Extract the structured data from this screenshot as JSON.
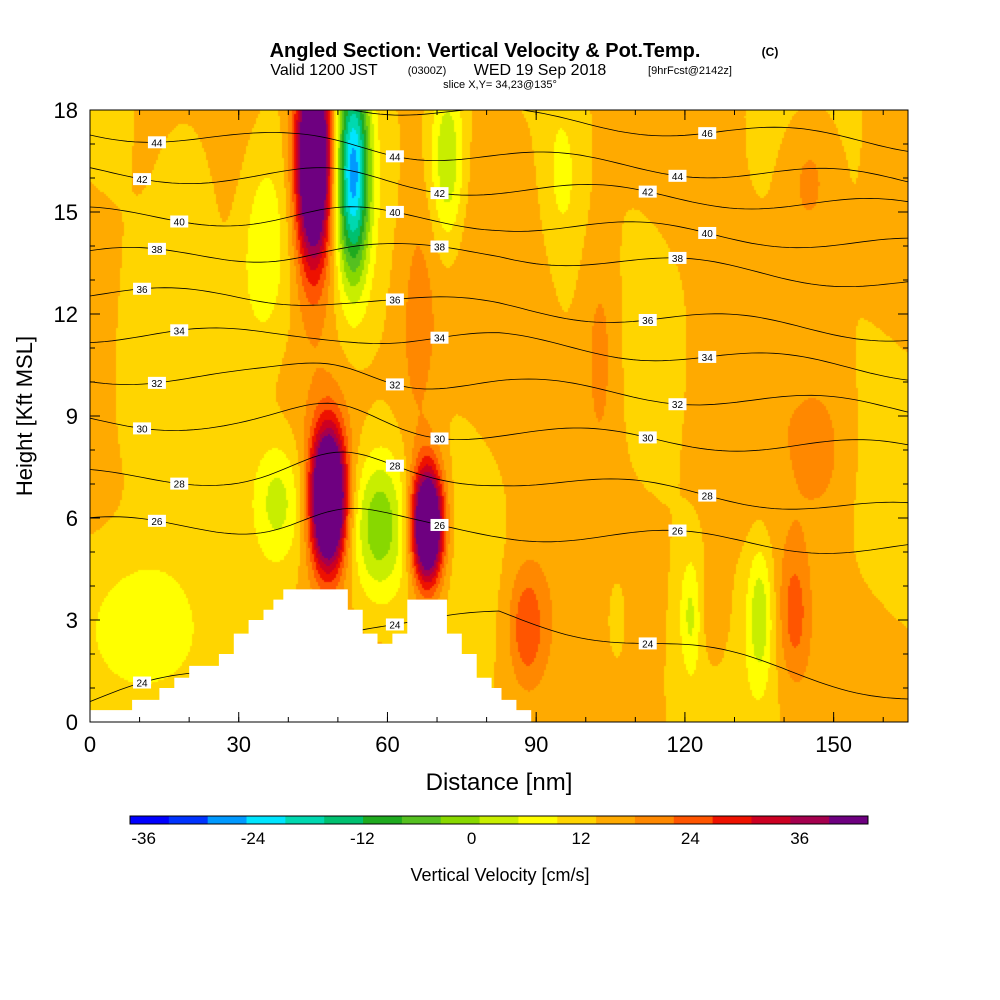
{
  "title": {
    "main": "Angled Section: Vertical Velocity & Pot.Temp.",
    "main_tag": "(C)",
    "valid_prefix": "Valid 1200 JST",
    "valid_z": "(0300Z)",
    "valid_date": "WED 19 Sep 2018",
    "valid_fcst": "[9hrFcst@2142z]",
    "slice": "slice X,Y= 34,23@135°"
  },
  "colorbar": {
    "label": "Vertical Velocity [cm/s]",
    "min": -39,
    "max": 42,
    "step": 3,
    "tick_labels": [
      "-36",
      "-24",
      "-12",
      "0",
      "12",
      "24",
      "36"
    ],
    "colors": [
      "#0000ff",
      "#0033ff",
      "#0099ff",
      "#00e5ff",
      "#00d8b0",
      "#00c070",
      "#1faa1f",
      "#55c020",
      "#88d800",
      "#c8ee00",
      "#ffff00",
      "#ffd500",
      "#ffaa00",
      "#ff8800",
      "#ff5500",
      "#ee1100",
      "#cc0022",
      "#a5004e",
      "#6e0080"
    ]
  },
  "chart_data": {
    "type": "heatmap",
    "xlabel": "Distance [nm]",
    "ylabel": "Height [Kft MSL]",
    "xlim": [
      0,
      165
    ],
    "ylim": [
      0,
      18
    ],
    "xticks": [
      "0",
      "30",
      "60",
      "90",
      "120",
      "150"
    ],
    "yticks": [
      "0",
      "3",
      "6",
      "9",
      "12",
      "15",
      "18"
    ],
    "field": "vertical velocity [cm/s]",
    "velocity_features": [
      {
        "x": 48,
        "y": 6.6,
        "sx": 2.4,
        "sy": 1.4,
        "value": 38
      },
      {
        "x": 68,
        "y": 5.8,
        "sx": 2.2,
        "sy": 1.2,
        "value": 36
      },
      {
        "x": 45,
        "y": 16.5,
        "sx": 2.5,
        "sy": 2.2,
        "value": 36
      },
      {
        "x": 53,
        "y": 16.2,
        "sx": 2.3,
        "sy": 2.2,
        "value": -27
      },
      {
        "x": 58,
        "y": 5.8,
        "sx": 4,
        "sy": 1.5,
        "value": -12
      },
      {
        "x": 38,
        "y": 6.5,
        "sx": 4,
        "sy": 1.4,
        "value": -9
      },
      {
        "x": 10,
        "y": 2.6,
        "sx": 9,
        "sy": 1.8,
        "value": -8
      },
      {
        "x": 72,
        "y": 16.5,
        "sx": 2.5,
        "sy": 1.8,
        "value": -10
      },
      {
        "x": 35,
        "y": 14,
        "sx": 4,
        "sy": 2.5,
        "value": -6
      },
      {
        "x": 103,
        "y": 11,
        "sx": 3,
        "sy": 2.5,
        "value": 5
      },
      {
        "x": 88,
        "y": 2.8,
        "sx": 2.5,
        "sy": 1.2,
        "value": 8
      },
      {
        "x": 142,
        "y": 3.2,
        "sx": 2.2,
        "sy": 1.4,
        "value": 7
      },
      {
        "x": 126,
        "y": 3.2,
        "sx": 2,
        "sy": 1.2,
        "value": 4
      },
      {
        "x": 135,
        "y": 3.2,
        "sx": 1.8,
        "sy": 1.5,
        "value": -8
      },
      {
        "x": 121,
        "y": 3.2,
        "sx": 1.5,
        "sy": 1.2,
        "value": -6
      },
      {
        "x": 106,
        "y": 3,
        "sx": 1.5,
        "sy": 1,
        "value": -4
      },
      {
        "x": 145,
        "y": 16,
        "sx": 4,
        "sy": 1.5,
        "value": 5
      },
      {
        "x": 66,
        "y": 11.5,
        "sx": 3,
        "sy": 3,
        "value": 4
      },
      {
        "x": 20,
        "y": 15.5,
        "sx": 4,
        "sy": 2,
        "value": -4
      },
      {
        "x": 95,
        "y": 16,
        "sx": 3,
        "sy": 1.8,
        "value": -4
      },
      {
        "x": 148,
        "y": 8,
        "sx": 4,
        "sy": 1.5,
        "value": 3
      }
    ],
    "theta_levels": [
      {
        "value": 24,
        "label": "24",
        "y_left": 0.6,
        "y_mid": 3.2,
        "y_right": 0.8
      },
      {
        "value": 26,
        "label": "26",
        "y_left": 5.8,
        "y_mid": 5.6,
        "y_right": 5.1
      },
      {
        "value": 28,
        "label": "28",
        "y_left": 7.2,
        "y_mid": 7.2,
        "y_right": 6.2
      },
      {
        "value": 30,
        "label": "30",
        "y_left": 8.9,
        "y_mid": 8.5,
        "y_right": 8.0
      },
      {
        "value": 32,
        "label": "32",
        "y_left": 10.2,
        "y_mid": 9.9,
        "y_right": 9.2
      },
      {
        "value": 34,
        "label": "34",
        "y_left": 11.4,
        "y_mid": 11.2,
        "y_right": 10.3
      },
      {
        "value": 36,
        "label": "36",
        "y_left": 12.6,
        "y_mid": 12.2,
        "y_right": 11.4
      },
      {
        "value": 38,
        "label": "38",
        "y_left": 13.7,
        "y_mid": 13.8,
        "y_right": 12.9
      },
      {
        "value": 40,
        "label": "40",
        "y_left": 14.9,
        "y_mid": 14.7,
        "y_right": 14.0
      },
      {
        "value": 42,
        "label": "42",
        "y_left": 16.2,
        "y_mid": 15.7,
        "y_right": 15.1
      },
      {
        "value": 44,
        "label": "44",
        "y_left": 17.4,
        "y_mid": 16.6,
        "y_right": 15.9
      },
      {
        "value": 46,
        "label": "46",
        "y_left": 18.6,
        "y_mid": 17.8,
        "y_right": 17.0
      }
    ],
    "terrain": [
      [
        0,
        0.35
      ],
      [
        8.5,
        0.35
      ],
      [
        8.5,
        0.65
      ],
      [
        14,
        0.65
      ],
      [
        14,
        1.0
      ],
      [
        17,
        1.0
      ],
      [
        17,
        1.3
      ],
      [
        20,
        1.3
      ],
      [
        20,
        1.65
      ],
      [
        26,
        1.65
      ],
      [
        26,
        2.0
      ],
      [
        29,
        2.0
      ],
      [
        29,
        2.6
      ],
      [
        32,
        2.6
      ],
      [
        32,
        3.0
      ],
      [
        35,
        3.0
      ],
      [
        35,
        3.3
      ],
      [
        37,
        3.3
      ],
      [
        37,
        3.6
      ],
      [
        39,
        3.6
      ],
      [
        39,
        3.9
      ],
      [
        46,
        3.9
      ],
      [
        46,
        3.9
      ],
      [
        52,
        3.9
      ],
      [
        52,
        3.3
      ],
      [
        55,
        3.3
      ],
      [
        55,
        2.6
      ],
      [
        58,
        2.6
      ],
      [
        58,
        2.3
      ],
      [
        61,
        2.3
      ],
      [
        61,
        2.6
      ],
      [
        64,
        2.6
      ],
      [
        64,
        3.6
      ],
      [
        72,
        3.6
      ],
      [
        72,
        2.6
      ],
      [
        75,
        2.6
      ],
      [
        75,
        2.0
      ],
      [
        78,
        2.0
      ],
      [
        78,
        1.3
      ],
      [
        81,
        1.3
      ],
      [
        81,
        1.0
      ],
      [
        83,
        1.0
      ],
      [
        83,
        0.65
      ],
      [
        86,
        0.65
      ],
      [
        86,
        0.35
      ],
      [
        89,
        0.35
      ],
      [
        89,
        0
      ],
      [
        0,
        0
      ]
    ]
  }
}
